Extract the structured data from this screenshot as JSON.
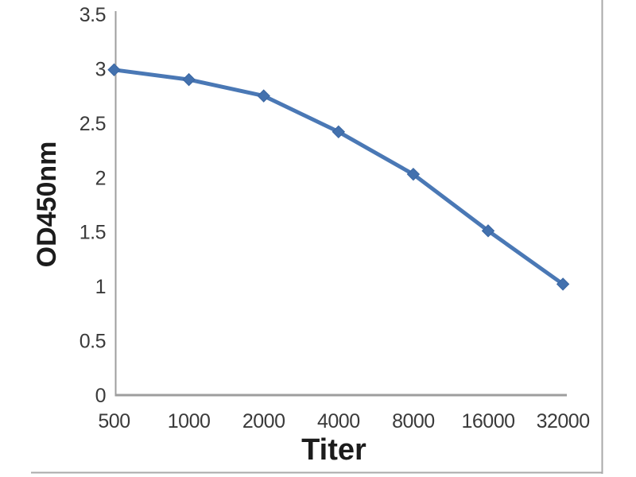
{
  "chart_data": {
    "type": "line",
    "title": "",
    "xlabel": "Titer",
    "ylabel": "OD450nm",
    "categories": [
      "500",
      "1000",
      "2000",
      "4000",
      "8000",
      "16000",
      "32000"
    ],
    "x_values": [
      500,
      1000,
      2000,
      4000,
      8000,
      16000,
      32000
    ],
    "series": [
      {
        "name": "OD450nm",
        "values": [
          2.99,
          2.9,
          2.75,
          2.42,
          2.03,
          1.51,
          1.02
        ]
      }
    ],
    "ylim": [
      0,
      3.5
    ],
    "y_tick_labels": [
      "0",
      "0.5",
      "1",
      "1.5",
      "2",
      "2.5",
      "3",
      "3.5"
    ],
    "x_axis_scale_note": "doubling dilution series, categorical spacing",
    "grid": false,
    "legend": false,
    "marker": "diamond",
    "colors": {
      "line": "#4a78b5",
      "marker_fill": "#4371ae",
      "marker_stroke": "#3a66a2",
      "axis": "#9e9e9e",
      "tick_text": "#3a3a3a",
      "title_text": "#1c1c1c",
      "frame": "#a9a9a9",
      "background": "#ffffff"
    }
  }
}
